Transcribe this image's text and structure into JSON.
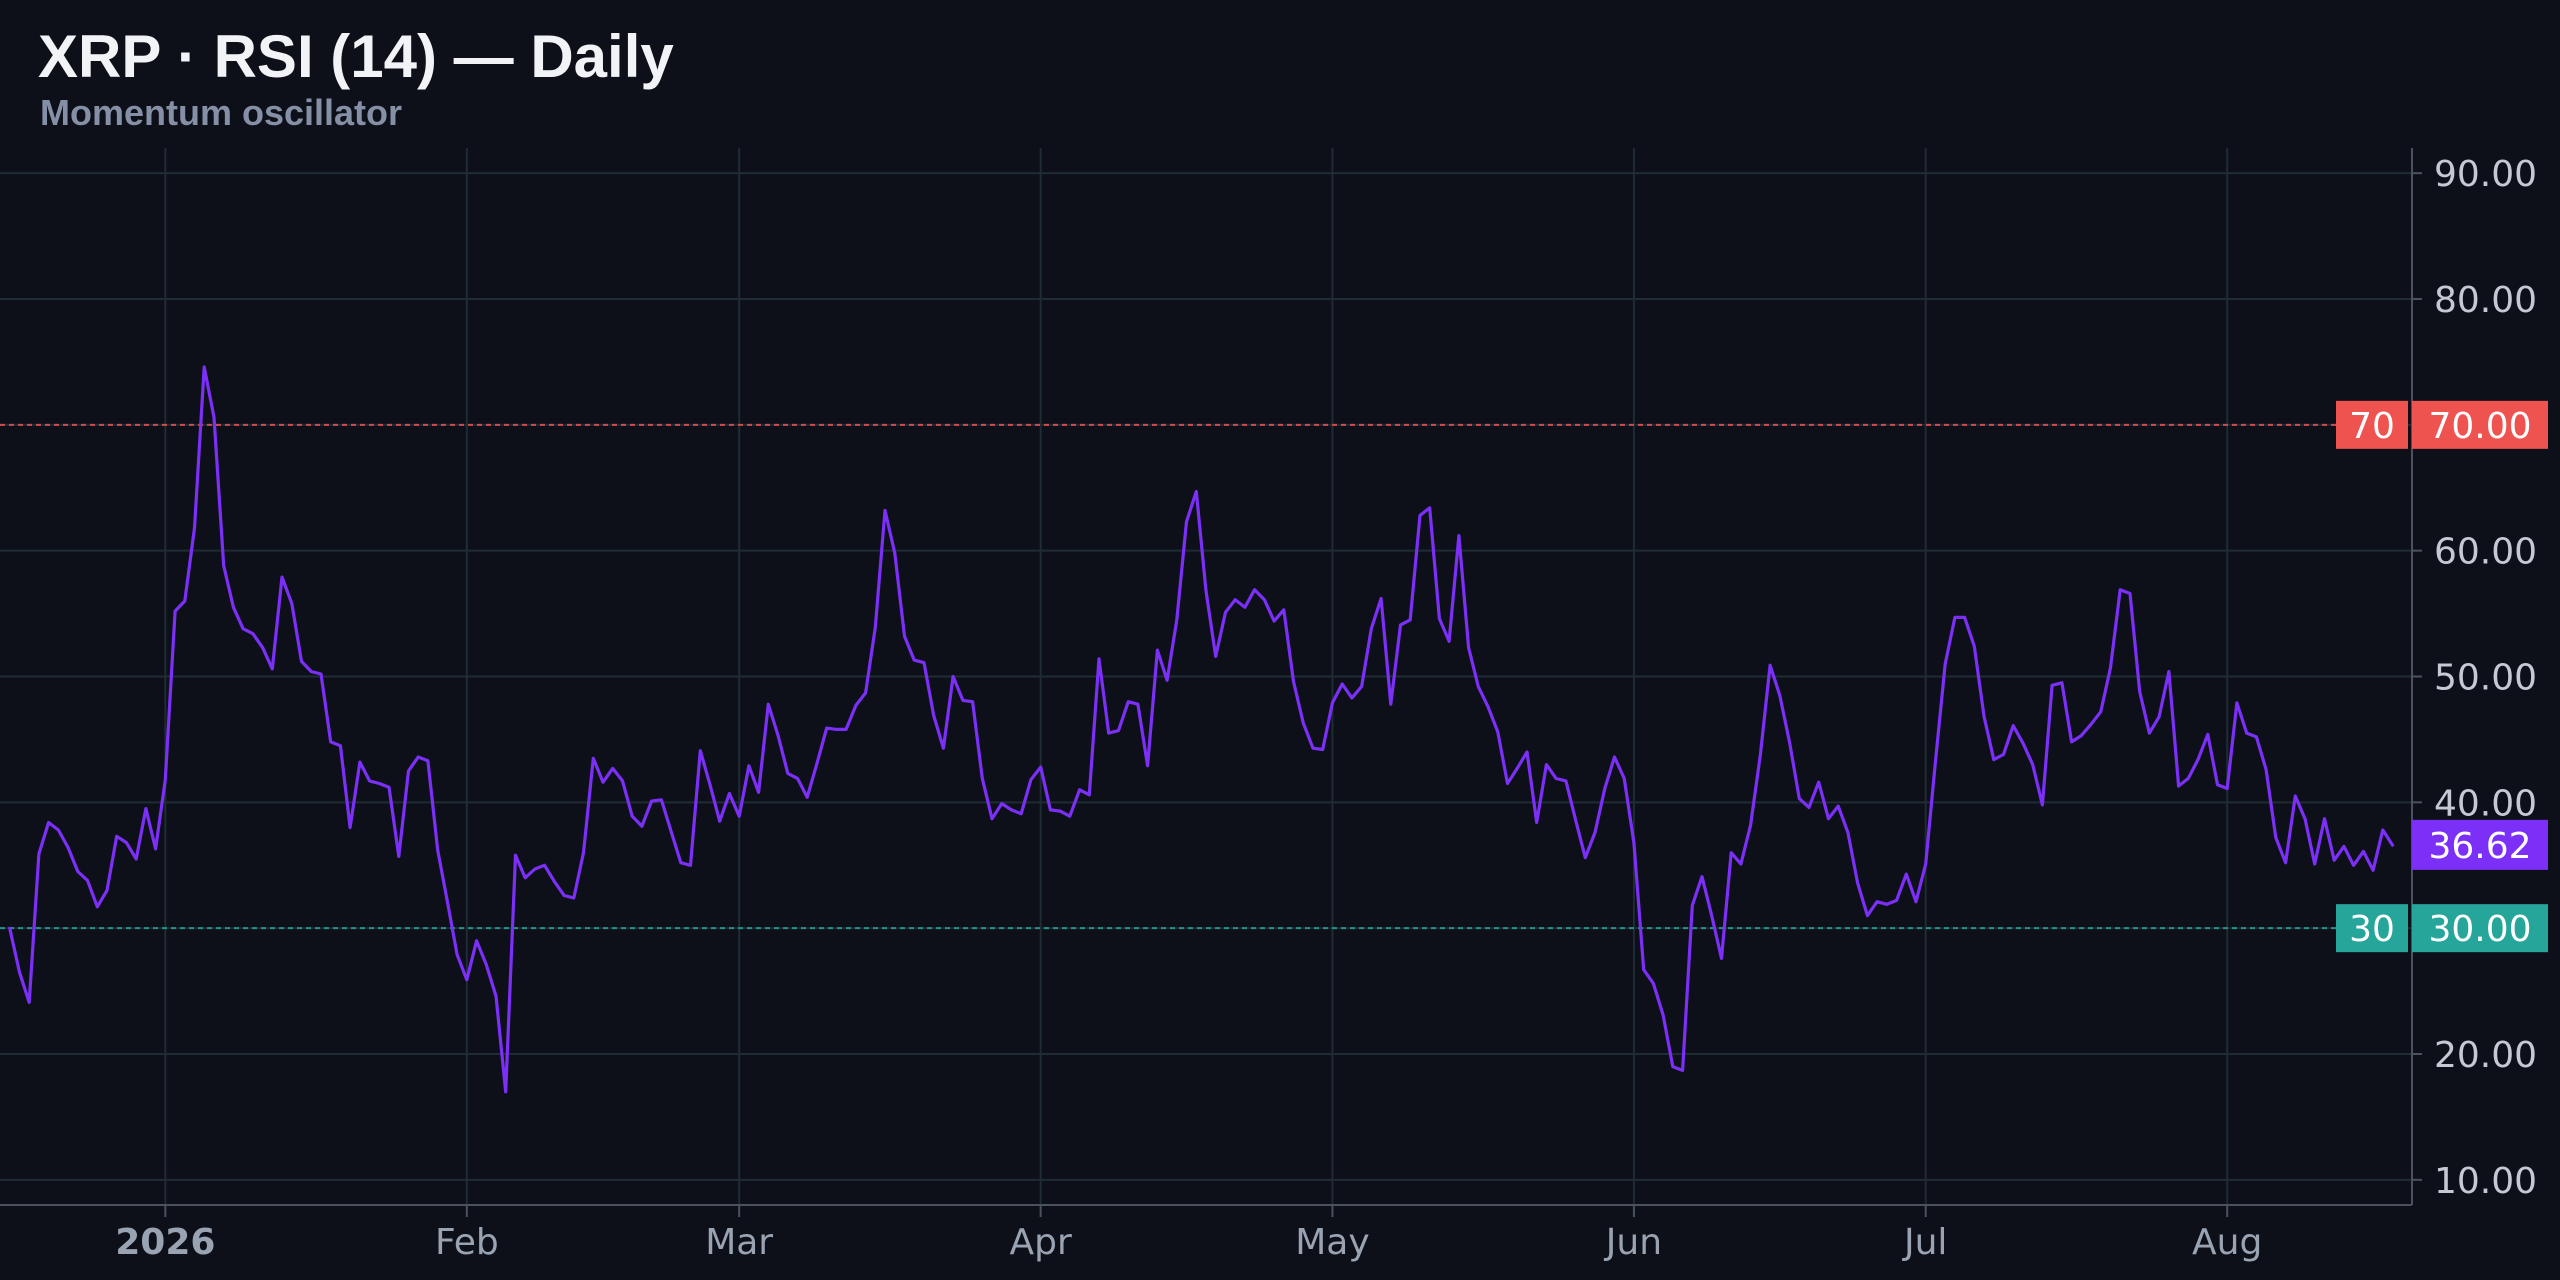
{
  "header": {
    "title": "XRP · RSI (14) — Daily",
    "subtitle": "Momentum oscillator"
  },
  "colors": {
    "background": "#0d1018",
    "rsi_line": "#7b2ff7",
    "overbought": "#ef5350",
    "oversold": "#26a69a",
    "grid": "#1f2b35"
  },
  "chart_data": {
    "type": "line",
    "title": "XRP · RSI (14) — Daily",
    "subtitle": "Momentum oscillator",
    "x_range": [
      "2025-12-15",
      "2026-08-20"
    ],
    "ylim": [
      8,
      92
    ],
    "y_ticks": [
      "10.00",
      "20.00",
      "30.00",
      "40.00",
      "50.00",
      "60.00",
      "70.00",
      "80.00",
      "90.00"
    ],
    "y_tick_values": [
      10,
      20,
      30,
      40,
      50,
      60,
      70,
      80,
      90
    ],
    "x_ticks": [
      {
        "label": "2026",
        "date": "2026-01-01",
        "major": true
      },
      {
        "label": "Feb",
        "date": "2026-02-01",
        "major": false
      },
      {
        "label": "Mar",
        "date": "2026-03-01",
        "major": false
      },
      {
        "label": "Apr",
        "date": "2026-04-01",
        "major": false
      },
      {
        "label": "May",
        "date": "2026-05-01",
        "major": false
      },
      {
        "label": "Jun",
        "date": "2026-06-01",
        "major": false
      },
      {
        "label": "Jul",
        "date": "2026-07-01",
        "major": false
      },
      {
        "label": "Aug",
        "date": "2026-08-01",
        "major": false
      }
    ],
    "grid": true,
    "axis_position": "right",
    "reference_lines": [
      {
        "value": 70,
        "label": "70",
        "axis_label": "70.00",
        "color": "#ef5350"
      },
      {
        "value": 30,
        "label": "30",
        "axis_label": "30.00",
        "color": "#26a69a"
      }
    ],
    "last_value": {
      "value": 36.62,
      "label": "36.62"
    },
    "series": [
      {
        "start_date": "2025-12-16",
        "values": [
          30.0,
          26.5,
          24.1,
          35.9,
          38.4,
          37.8,
          36.4,
          34.5,
          33.8,
          31.7,
          33.0,
          37.3,
          36.8,
          35.5,
          39.5,
          36.3,
          41.8,
          55.2,
          56.0,
          61.8,
          74.6,
          70.6,
          58.8,
          55.5,
          53.8,
          53.4,
          52.3,
          50.6,
          57.9,
          55.8,
          51.2,
          50.4,
          50.2,
          44.8,
          44.5,
          38.0,
          43.2,
          41.7,
          41.5,
          41.2,
          35.7,
          42.5,
          43.6,
          43.3,
          36.2,
          32.1,
          27.9,
          25.9,
          29.0,
          27.1,
          24.6,
          17.0,
          35.8,
          34.0,
          34.7,
          35.0,
          33.7,
          32.6,
          32.4,
          36.0,
          43.5,
          41.6,
          42.7,
          41.7,
          38.9,
          38.1,
          40.1,
          40.2,
          37.7,
          35.2,
          35.0,
          44.1,
          41.4,
          38.5,
          40.7,
          38.9,
          42.9,
          40.8,
          47.8,
          45.3,
          42.3,
          41.9,
          40.4,
          43.1,
          45.9,
          45.8,
          45.8,
          47.7,
          48.7,
          53.9,
          63.2,
          59.8,
          53.2,
          51.3,
          51.1,
          46.9,
          44.3,
          50.0,
          48.1,
          48.0,
          41.9,
          38.7,
          39.9,
          39.4,
          39.1,
          41.8,
          42.8,
          39.4,
          39.3,
          38.9,
          41.0,
          40.6,
          51.4,
          45.5,
          45.7,
          48.0,
          47.8,
          42.9,
          52.1,
          49.7,
          54.5,
          62.3,
          64.7,
          56.8,
          51.6,
          55.1,
          56.1,
          55.5,
          56.9,
          56.1,
          54.4,
          55.3,
          49.6,
          46.3,
          44.3,
          44.2,
          47.9,
          49.4,
          48.3,
          49.2,
          53.8,
          56.2,
          47.8,
          54.1,
          54.5,
          62.8,
          63.4,
          54.6,
          52.8,
          61.2,
          52.3,
          49.2,
          47.6,
          45.6,
          41.5,
          42.7,
          44.0,
          38.4,
          43.0,
          41.9,
          41.7,
          38.6,
          35.6,
          37.6,
          41.1,
          43.6,
          41.9,
          36.8,
          26.7,
          25.6,
          23.1,
          19.0,
          18.7,
          31.8,
          34.1,
          31.0,
          27.6,
          36.0,
          35.1,
          38.2,
          43.8,
          50.9,
          48.5,
          44.8,
          40.3,
          39.6,
          41.6,
          38.7,
          39.7,
          37.6,
          33.6,
          31.0,
          32.1,
          31.9,
          32.2,
          34.3,
          32.1,
          35.1,
          43.2,
          51.0,
          54.7,
          54.7,
          52.4,
          46.8,
          43.4,
          43.8,
          46.1,
          44.7,
          43.0,
          39.8,
          49.3,
          49.5,
          44.8,
          45.3,
          46.2,
          47.2,
          50.7,
          56.9,
          56.6,
          48.8,
          45.5,
          46.8,
          50.4,
          41.3,
          41.9,
          43.4,
          45.4,
          41.4,
          41.1,
          47.9,
          45.5,
          45.2,
          42.6,
          37.2,
          35.2,
          40.5,
          38.7,
          35.1,
          38.7,
          35.4,
          36.5,
          35.0,
          36.1,
          34.6,
          37.8,
          36.6
        ]
      }
    ]
  }
}
